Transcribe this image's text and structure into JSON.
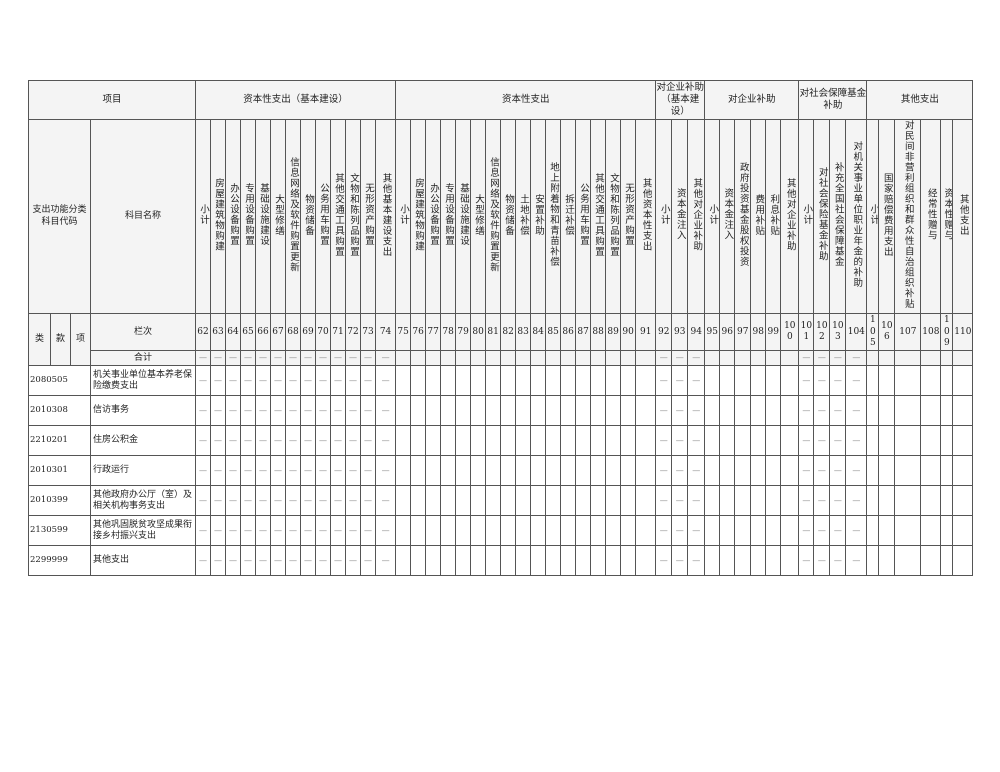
{
  "header": {
    "project": "项目",
    "code_header": "支出功能分类科目代码",
    "name_header": "科目名称",
    "lei": "类",
    "kuan": "款",
    "xiang": "项",
    "lanci": "栏次",
    "total_label": "合计"
  },
  "placeholder": "—",
  "groups": [
    {
      "label": "资本性支出（基本建设）",
      "columns": [
        {
          "num": "62",
          "label": "小计",
          "dash": true
        },
        {
          "num": "63",
          "label": "房屋建筑物购建",
          "dash": true
        },
        {
          "num": "64",
          "label": "办公设备购置",
          "dash": true
        },
        {
          "num": "65",
          "label": "专用设备购置",
          "dash": true
        },
        {
          "num": "66",
          "label": "基础设施建设",
          "dash": true
        },
        {
          "num": "67",
          "label": "大型修缮",
          "dash": true
        },
        {
          "num": "68",
          "label": "信息网络及软件购置更新",
          "dash": true
        },
        {
          "num": "69",
          "label": "物资储备",
          "dash": true
        },
        {
          "num": "70",
          "label": "公务用车购置",
          "dash": true
        },
        {
          "num": "71",
          "label": "其他交通工具购置",
          "dash": true
        },
        {
          "num": "72",
          "label": "文物和陈列品购置",
          "dash": true
        },
        {
          "num": "73",
          "label": "无形资产购置",
          "dash": true
        },
        {
          "num": "74",
          "label": "其他基本建设支出",
          "dash": true
        }
      ]
    },
    {
      "label": "资本性支出",
      "columns": [
        {
          "num": "75",
          "label": "小计",
          "dash": false
        },
        {
          "num": "76",
          "label": "房屋建筑物购建",
          "dash": false
        },
        {
          "num": "77",
          "label": "办公设备购置",
          "dash": false
        },
        {
          "num": "78",
          "label": "专用设备购置",
          "dash": false
        },
        {
          "num": "79",
          "label": "基础设施建设",
          "dash": false
        },
        {
          "num": "80",
          "label": "大型修缮",
          "dash": false
        },
        {
          "num": "81",
          "label": "信息网络及软件购置更新",
          "dash": false
        },
        {
          "num": "82",
          "label": "物资储备",
          "dash": false
        },
        {
          "num": "83",
          "label": "土地补偿",
          "dash": false
        },
        {
          "num": "84",
          "label": "安置补助",
          "dash": false
        },
        {
          "num": "85",
          "label": "地上附着物和青苗补偿",
          "dash": false
        },
        {
          "num": "86",
          "label": "拆迁补偿",
          "dash": false
        },
        {
          "num": "87",
          "label": "公务用车购置",
          "dash": false
        },
        {
          "num": "88",
          "label": "其他交通工具购置",
          "dash": false
        },
        {
          "num": "89",
          "label": "文物和陈列品购置",
          "dash": false
        },
        {
          "num": "90",
          "label": "无形资产购置",
          "dash": false
        },
        {
          "num": "91",
          "label": "其他资本性支出",
          "dash": false
        }
      ]
    },
    {
      "label": "对企业补助（基本建设）",
      "columns": [
        {
          "num": "92",
          "label": "小计",
          "dash": true
        },
        {
          "num": "93",
          "label": "资本金注入",
          "dash": true
        },
        {
          "num": "94",
          "label": "其他对企业补助",
          "dash": true
        }
      ]
    },
    {
      "label": "对企业补助",
      "columns": [
        {
          "num": "95",
          "label": "小计",
          "dash": false
        },
        {
          "num": "96",
          "label": "资本金注入",
          "dash": false
        },
        {
          "num": "97",
          "label": "政府投资基金股权投资",
          "dash": false
        },
        {
          "num": "98",
          "label": "费用补贴",
          "dash": false
        },
        {
          "num": "99",
          "label": "利息补贴",
          "dash": false
        },
        {
          "num": "100",
          "label": "其他对企业补助",
          "dash": false
        }
      ]
    },
    {
      "label": "对社会保障基金补助",
      "columns": [
        {
          "num": "101",
          "label": "小计",
          "dash": true
        },
        {
          "num": "102",
          "label": "对社会保险基金补助",
          "dash": true
        },
        {
          "num": "103",
          "label": "补充全国社会保障基金",
          "dash": true
        },
        {
          "num": "104",
          "label": "对机关事业单位职业年金的补助",
          "dash": true
        }
      ]
    },
    {
      "label": "其他支出",
      "columns": [
        {
          "num": "105",
          "label": "小计",
          "dash": false
        },
        {
          "num": "106",
          "label": "国家赔偿费用支出",
          "dash": false
        },
        {
          "num": "107",
          "label": "对民间非营利组织和群众性自治组织补贴",
          "dash": false
        },
        {
          "num": "108",
          "label": "经常性赠与",
          "dash": false
        },
        {
          "num": "109",
          "label": "资本性赠与",
          "dash": false
        },
        {
          "num": "110",
          "label": "其他支出",
          "dash": false
        }
      ]
    }
  ],
  "rows": [
    {
      "code": "2080505",
      "name": "机关事业单位基本养老保险缴费支出"
    },
    {
      "code": "2010308",
      "name": "信访事务"
    },
    {
      "code": "2210201",
      "name": "住房公积金"
    },
    {
      "code": "2010301",
      "name": "行政运行"
    },
    {
      "code": "2010399",
      "name": "其他政府办公厅（室）及相关机构事务支出"
    },
    {
      "code": "2130599",
      "name": "其他巩固脱贫攻坚成果衔接乡村振兴支出"
    },
    {
      "code": "2299999",
      "name": "其他支出"
    }
  ]
}
